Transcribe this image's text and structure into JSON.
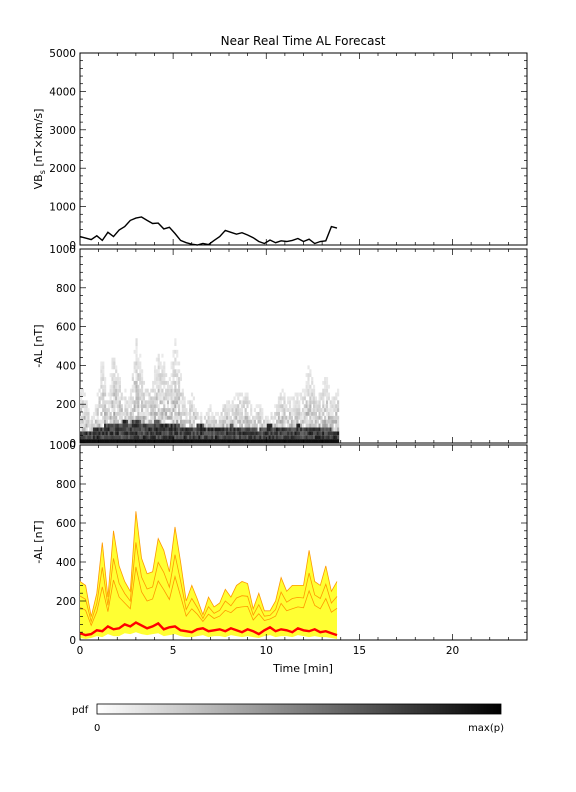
{
  "chart_data": [
    {
      "type": "line",
      "title": "Near Real Time AL Forecast",
      "ylabel_main": "VB",
      "ylabel_sub": "s",
      "ylabel_rest": " [nT×km/s]",
      "xlim": [
        0,
        24
      ],
      "ylim": [
        0,
        5000
      ],
      "yticks": [
        0,
        1000,
        2000,
        3000,
        4000,
        5000
      ],
      "series": [
        {
          "color": "#000000",
          "x": [
            0.0,
            0.3,
            0.6,
            0.9,
            1.2,
            1.5,
            1.8,
            2.1,
            2.4,
            2.7,
            3.0,
            3.3,
            3.6,
            3.9,
            4.2,
            4.5,
            4.8,
            5.1,
            5.4,
            5.7,
            6.0,
            6.3,
            6.6,
            6.9,
            7.2,
            7.5,
            7.8,
            8.1,
            8.4,
            8.7,
            9.0,
            9.3,
            9.6,
            9.9,
            10.2,
            10.5,
            10.8,
            11.1,
            11.4,
            11.7,
            12.0,
            12.3,
            12.6,
            12.9,
            13.2,
            13.5,
            13.8
          ],
          "y": [
            220,
            180,
            140,
            240,
            120,
            330,
            220,
            390,
            480,
            640,
            700,
            730,
            640,
            560,
            570,
            420,
            460,
            300,
            120,
            60,
            20,
            0,
            40,
            10,
            120,
            220,
            380,
            330,
            280,
            320,
            260,
            190,
            90,
            40,
            130,
            60,
            110,
            90,
            120,
            170,
            90,
            150,
            40,
            90,
            110,
            480,
            440
          ]
        }
      ]
    },
    {
      "type": "heatmap",
      "ylabel": "-AL [nT]",
      "xlim": [
        0,
        24
      ],
      "ylim": [
        0,
        1000
      ],
      "yticks": [
        0,
        200,
        400,
        600,
        800,
        1000
      ],
      "data_xmax": 13.9
    },
    {
      "type": "line",
      "ylabel": "-AL [nT]",
      "xlabel": "Time [min]",
      "xlim": [
        0,
        24
      ],
      "ylim": [
        0,
        1000
      ],
      "xticks": [
        0,
        5,
        10,
        15,
        20
      ],
      "yticks": [
        0,
        200,
        400,
        600,
        800,
        1000
      ],
      "band_color": "#ffff33",
      "ensemble_color": "#ff9900",
      "median_color": "#ff0000",
      "x": [
        0.0,
        0.3,
        0.6,
        0.9,
        1.2,
        1.5,
        1.8,
        2.1,
        2.4,
        2.7,
        3.0,
        3.3,
        3.6,
        3.9,
        4.2,
        4.5,
        4.8,
        5.1,
        5.4,
        5.7,
        6.0,
        6.3,
        6.6,
        6.9,
        7.2,
        7.5,
        7.8,
        8.1,
        8.4,
        8.7,
        9.0,
        9.3,
        9.6,
        9.9,
        10.2,
        10.5,
        10.8,
        11.1,
        11.4,
        11.7,
        12.0,
        12.3,
        12.6,
        12.9,
        13.2,
        13.5,
        13.8
      ],
      "median": [
        35,
        25,
        30,
        50,
        45,
        70,
        55,
        60,
        80,
        70,
        90,
        75,
        60,
        70,
        85,
        55,
        65,
        70,
        50,
        45,
        40,
        55,
        60,
        45,
        50,
        55,
        45,
        60,
        50,
        40,
        55,
        45,
        30,
        50,
        65,
        45,
        55,
        50,
        40,
        60,
        50,
        45,
        55,
        40,
        45,
        35,
        25
      ],
      "upper": [
        300,
        280,
        120,
        240,
        500,
        220,
        560,
        380,
        300,
        250,
        660,
        420,
        340,
        350,
        520,
        460,
        350,
        580,
        400,
        200,
        280,
        210,
        130,
        220,
        170,
        190,
        260,
        220,
        280,
        300,
        290,
        160,
        240,
        150,
        150,
        200,
        320,
        250,
        280,
        280,
        280,
        460,
        300,
        280,
        380,
        250,
        300
      ],
      "lower": [
        10,
        5,
        10,
        20,
        15,
        30,
        20,
        20,
        35,
        30,
        40,
        30,
        25,
        30,
        35,
        20,
        25,
        30,
        20,
        15,
        15,
        20,
        25,
        15,
        20,
        20,
        15,
        25,
        20,
        15,
        20,
        15,
        10,
        20,
        25,
        15,
        20,
        20,
        15,
        25,
        20,
        15,
        20,
        15,
        15,
        10,
        5
      ]
    }
  ],
  "colorbar": {
    "label": "pdf",
    "min_label": "0",
    "max_label": "max(p)"
  }
}
